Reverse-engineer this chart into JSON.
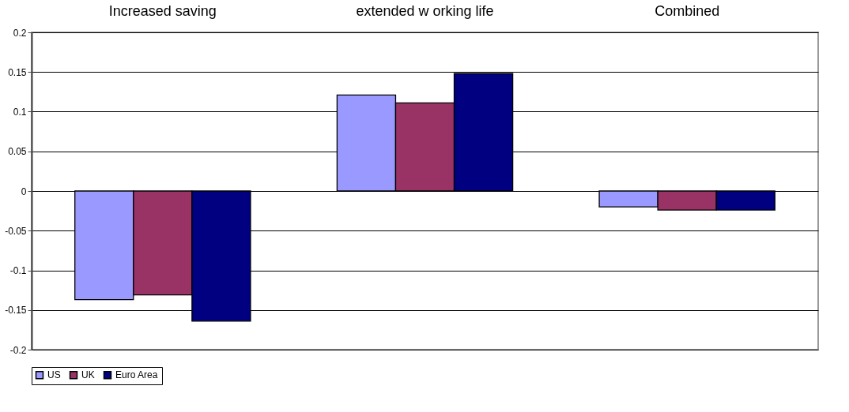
{
  "chart_data": {
    "type": "bar",
    "categories": [
      "Increased saving",
      "extended w orking life",
      "Combined"
    ],
    "series": [
      {
        "name": "US",
        "color": "#9999ff",
        "values": [
          -0.137,
          0.121,
          -0.02
        ]
      },
      {
        "name": "UK",
        "color": "#993366",
        "values": [
          -0.131,
          0.111,
          -0.024
        ]
      },
      {
        "name": "Euro Area",
        "color": "#000080",
        "values": [
          -0.164,
          0.148,
          -0.024
        ]
      }
    ],
    "ylim": [
      -0.2,
      0.2
    ],
    "yticks": [
      -0.2,
      -0.15,
      -0.1,
      -0.05,
      0,
      0.05,
      0.1,
      0.15,
      0.2
    ],
    "grid": "y",
    "legend": "bottom"
  }
}
